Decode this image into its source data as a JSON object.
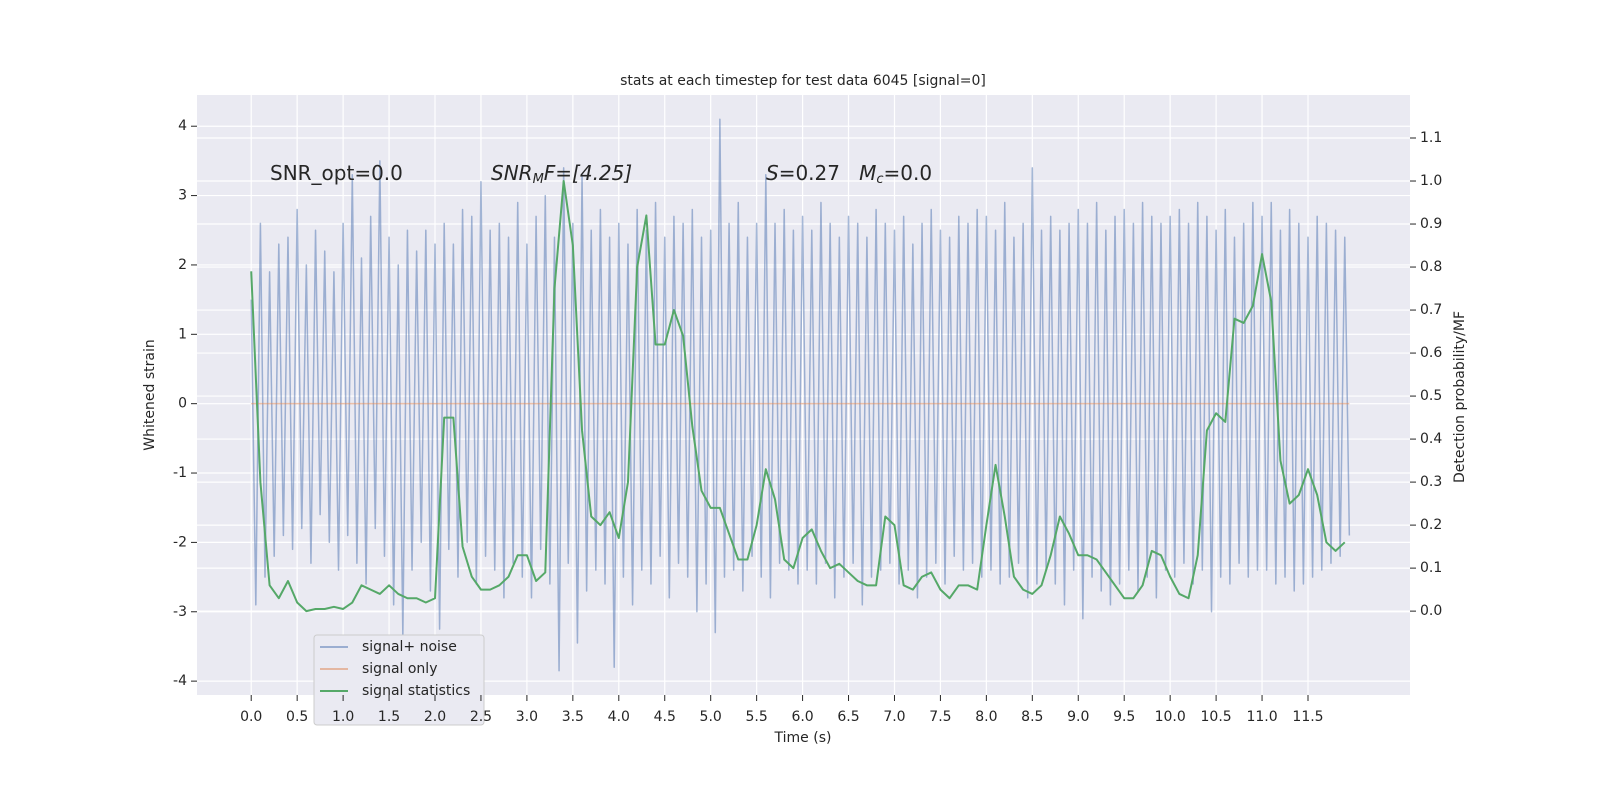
{
  "chart_data": {
    "type": "line",
    "title": "stats at each timestep for test data 6045 [signal=0]",
    "xlabel": "Time (s)",
    "ylabel": "Whitened strain",
    "y2label": "Detection probability/MF",
    "annotations": [
      [
        "SNR_opt=0.0"
      ],
      [
        "SNR",
        "M",
        "F=[4.25]"
      ],
      [
        "S",
        "=0.27   ",
        "M",
        "c",
        "=0.0"
      ]
    ],
    "grid": true,
    "legend": "lower left",
    "xlim": [
      -0.59,
      12.61
    ],
    "ylim": [
      -4.2,
      4.45
    ],
    "y2lim": [
      -0.195,
      1.2
    ],
    "xticks": [
      {
        "value": 0,
        "label": "0.0"
      },
      0.5,
      {
        "value": 1,
        "label": "1.0"
      },
      1.5,
      {
        "value": 2,
        "label": "2.0"
      },
      2.5,
      {
        "value": 3,
        "label": "3.0"
      },
      3.5,
      {
        "value": 4,
        "label": "4.0"
      },
      4.5,
      {
        "value": 5,
        "label": "5.0"
      },
      5.5,
      {
        "value": 6,
        "label": "6.0"
      },
      6.5,
      {
        "value": 7,
        "label": "7.0"
      },
      7.5,
      {
        "value": 8,
        "label": "8.0"
      },
      8.5,
      {
        "value": 9,
        "label": "9.0"
      },
      9.5,
      {
        "value": 10,
        "label": "10.0"
      },
      10.5,
      {
        "value": 11,
        "label": "11.0"
      },
      11.5
    ],
    "yticks": [
      -4,
      -3,
      -2,
      -1,
      0,
      1,
      2,
      3,
      4
    ],
    "y2ticks": [
      {
        "value": 0,
        "label": "0.0"
      },
      0.1,
      0.2,
      0.3,
      0.4,
      0.5,
      0.6,
      0.7,
      0.8,
      0.9,
      {
        "value": 1,
        "label": "1.0"
      },
      1.1
    ],
    "series": [
      {
        "name": "signal+ noise",
        "color": "#4c72b0",
        "opacity": 0.5,
        "x": [
          0,
          0.05,
          0.1,
          0.15,
          0.2,
          0.25,
          0.3,
          0.35,
          0.4,
          0.45,
          0.5,
          0.55,
          0.6,
          0.65,
          0.7,
          0.75,
          0.8,
          0.85,
          0.9,
          0.95,
          1,
          1.05,
          1.1,
          1.15,
          1.2,
          1.25,
          1.3,
          1.35,
          1.4,
          1.45,
          1.5,
          1.55,
          1.6,
          1.65,
          1.7,
          1.75,
          1.8,
          1.85,
          1.9,
          1.95,
          2,
          2.05,
          2.1,
          2.15,
          2.2,
          2.25,
          2.3,
          2.35,
          2.4,
          2.45,
          2.5,
          2.55,
          2.6,
          2.65,
          2.7,
          2.75,
          2.8,
          2.85,
          2.9,
          2.95,
          3,
          3.05,
          3.1,
          3.15,
          3.2,
          3.25,
          3.3,
          3.35,
          3.4,
          3.45,
          3.5,
          3.55,
          3.6,
          3.65,
          3.7,
          3.75,
          3.8,
          3.85,
          3.9,
          3.95,
          4,
          4.05,
          4.1,
          4.15,
          4.2,
          4.25,
          4.3,
          4.35,
          4.4,
          4.45,
          4.5,
          4.55,
          4.6,
          4.65,
          4.7,
          4.75,
          4.8,
          4.85,
          4.9,
          4.95,
          5,
          5.05,
          5.1,
          5.15,
          5.2,
          5.25,
          5.3,
          5.35,
          5.4,
          5.45,
          5.5,
          5.55,
          5.6,
          5.65,
          5.7,
          5.75,
          5.8,
          5.85,
          5.9,
          5.95,
          6,
          6.05,
          6.1,
          6.15,
          6.2,
          6.25,
          6.3,
          6.35,
          6.4,
          6.45,
          6.5,
          6.55,
          6.6,
          6.65,
          6.7,
          6.75,
          6.8,
          6.85,
          6.9,
          6.95,
          7,
          7.05,
          7.1,
          7.15,
          7.2,
          7.25,
          7.3,
          7.35,
          7.4,
          7.45,
          7.5,
          7.55,
          7.6,
          7.65,
          7.7,
          7.75,
          7.8,
          7.85,
          7.9,
          7.95,
          8,
          8.05,
          8.1,
          8.15,
          8.2,
          8.25,
          8.3,
          8.35,
          8.4,
          8.45,
          8.5,
          8.55,
          8.6,
          8.65,
          8.7,
          8.75,
          8.8,
          8.85,
          8.9,
          8.95,
          9,
          9.05,
          9.1,
          9.15,
          9.2,
          9.25,
          9.3,
          9.35,
          9.4,
          9.45,
          9.5,
          9.55,
          9.6,
          9.65,
          9.7,
          9.75,
          9.8,
          9.85,
          9.9,
          9.95,
          10,
          10.05,
          10.1,
          10.15,
          10.2,
          10.25,
          10.3,
          10.35,
          10.4,
          10.45,
          10.5,
          10.55,
          10.6,
          10.65,
          10.7,
          10.75,
          10.8,
          10.85,
          10.9,
          10.95,
          11,
          11.05,
          11.1,
          11.15,
          11.2,
          11.25,
          11.3,
          11.35,
          11.4,
          11.45,
          11.5,
          11.55,
          11.6,
          11.65,
          11.7,
          11.75,
          11.8,
          11.85,
          11.9,
          11.95
        ],
        "values": [
          1.5,
          -2.9,
          2.6,
          -2.5,
          1.9,
          -2.2,
          2.3,
          -1.9,
          2.4,
          -2.1,
          2.8,
          -1.8,
          2.0,
          -2.3,
          2.5,
          -1.6,
          2.2,
          -2.0,
          1.9,
          -2.4,
          2.6,
          -1.9,
          3.3,
          -2.3,
          2.1,
          -2.6,
          2.7,
          -1.8,
          3.5,
          -2.2,
          2.4,
          -2.9,
          2.0,
          -3.35,
          2.5,
          -2.4,
          2.2,
          -2.0,
          2.5,
          -2.7,
          2.3,
          -3.25,
          2.6,
          -2.1,
          2.3,
          -2.5,
          2.8,
          -2.0,
          2.7,
          -2.6,
          3.2,
          -2.2,
          2.5,
          -2.4,
          2.6,
          -2.8,
          2.4,
          -2.3,
          2.9,
          -2.5,
          2.3,
          -2.8,
          2.7,
          -2.1,
          3.0,
          -2.6,
          2.4,
          -3.85,
          3.4,
          -2.3,
          2.6,
          -3.45,
          3.3,
          -2.7,
          2.5,
          -2.4,
          2.8,
          -2.6,
          2.4,
          -3.8,
          2.6,
          -2.5,
          2.3,
          -2.9,
          2.8,
          -2.4,
          2.5,
          -2.6,
          2.9,
          -2.2,
          2.4,
          -2.8,
          2.7,
          -2.3,
          2.6,
          -2.5,
          2.8,
          -3.0,
          2.4,
          -2.6,
          2.5,
          -3.3,
          4.1,
          -2.5,
          2.6,
          -2.4,
          2.9,
          -2.7,
          2.4,
          -2.2,
          2.6,
          -2.5,
          3.3,
          -2.8,
          2.6,
          -2.3,
          2.8,
          -2.4,
          2.5,
          -2.6,
          2.7,
          -2.4,
          2.5,
          -2.6,
          2.9,
          -2.3,
          2.6,
          -2.8,
          2.4,
          -2.5,
          2.7,
          -2.3,
          2.6,
          -2.9,
          2.4,
          -2.5,
          2.8,
          -2.4,
          2.6,
          -2.3,
          2.5,
          -2.6,
          2.7,
          -2.4,
          2.3,
          -2.8,
          2.6,
          -2.5,
          2.8,
          -2.3,
          2.5,
          -2.6,
          2.4,
          -2.2,
          2.7,
          -2.4,
          2.6,
          -2.3,
          2.8,
          -2.5,
          2.7,
          -2.4,
          2.5,
          -2.6,
          2.9,
          -2.5,
          2.4,
          -2.3,
          2.6,
          -2.8,
          3.4,
          -2.6,
          2.5,
          -2.4,
          2.7,
          -2.6,
          2.5,
          -2.9,
          2.6,
          -2.4,
          2.8,
          -3.1,
          2.6,
          -2.5,
          2.9,
          -2.7,
          2.5,
          -2.9,
          2.7,
          -2.6,
          2.8,
          -2.4,
          2.6,
          -2.7,
          2.9,
          -2.5,
          2.7,
          -2.8,
          2.6,
          -2.4,
          2.7,
          -2.5,
          2.8,
          -2.3,
          2.6,
          -2.6,
          2.9,
          -2.4,
          2.7,
          -3.0,
          2.5,
          -2.5,
          2.8,
          -2.6,
          2.4,
          -2.3,
          2.6,
          -2.5,
          2.9,
          -2.4,
          2.7,
          -2.4,
          2.9,
          -2.6,
          2.5,
          -2.5,
          2.8,
          -2.7,
          2.6,
          -2.6,
          2.4,
          -2.5,
          2.7,
          -2.4,
          2.6,
          -2.3,
          2.5,
          -2.2,
          2.4,
          -1.9
        ]
      },
      {
        "name": "signal only",
        "color": "#dd8452",
        "opacity": 0.5,
        "x": [
          0,
          11.95
        ],
        "values": [
          0,
          0
        ]
      },
      {
        "name": "signal statistics",
        "color": "#55a868",
        "opacity": 1,
        "axis": "y2",
        "x": [
          0,
          0.1,
          0.2,
          0.3,
          0.4,
          0.5,
          0.6,
          0.7,
          0.8,
          0.9,
          1,
          1.1,
          1.2,
          1.3,
          1.4,
          1.5,
          1.6,
          1.7,
          1.8,
          1.9,
          2,
          2.1,
          2.2,
          2.3,
          2.4,
          2.5,
          2.6,
          2.7,
          2.8,
          2.9,
          3,
          3.1,
          3.2,
          3.3,
          3.4,
          3.5,
          3.6,
          3.7,
          3.8,
          3.9,
          4,
          4.1,
          4.2,
          4.3,
          4.4,
          4.5,
          4.6,
          4.7,
          4.8,
          4.9,
          5,
          5.1,
          5.2,
          5.3,
          5.4,
          5.5,
          5.6,
          5.7,
          5.8,
          5.9,
          6,
          6.1,
          6.2,
          6.3,
          6.4,
          6.5,
          6.6,
          6.7,
          6.8,
          6.9,
          7,
          7.1,
          7.2,
          7.3,
          7.4,
          7.5,
          7.6,
          7.7,
          7.8,
          7.9,
          8,
          8.1,
          8.2,
          8.3,
          8.4,
          8.5,
          8.6,
          8.7,
          8.8,
          8.9,
          9,
          9.1,
          9.2,
          9.3,
          9.4,
          9.5,
          9.6,
          9.7,
          9.8,
          9.9,
          10,
          10.1,
          10.2,
          10.3,
          10.4,
          10.5,
          10.6,
          10.7,
          10.8,
          10.9,
          11,
          11.1,
          11.2,
          11.3,
          11.4,
          11.5,
          11.6,
          11.7,
          11.8,
          11.9
        ],
        "values": [
          0.79,
          0.3,
          0.06,
          0.03,
          0.07,
          0.02,
          0.0,
          0.005,
          0.005,
          0.01,
          0.005,
          0.02,
          0.06,
          0.05,
          0.04,
          0.06,
          0.04,
          0.03,
          0.03,
          0.02,
          0.03,
          0.45,
          0.45,
          0.15,
          0.08,
          0.05,
          0.05,
          0.06,
          0.08,
          0.13,
          0.13,
          0.07,
          0.09,
          0.75,
          1.0,
          0.85,
          0.42,
          0.22,
          0.2,
          0.23,
          0.17,
          0.3,
          0.8,
          0.92,
          0.62,
          0.62,
          0.7,
          0.64,
          0.43,
          0.28,
          0.24,
          0.24,
          0.18,
          0.12,
          0.12,
          0.2,
          0.33,
          0.26,
          0.12,
          0.1,
          0.17,
          0.19,
          0.14,
          0.1,
          0.11,
          0.09,
          0.07,
          0.06,
          0.06,
          0.22,
          0.2,
          0.06,
          0.05,
          0.08,
          0.09,
          0.05,
          0.03,
          0.06,
          0.06,
          0.05,
          0.2,
          0.34,
          0.22,
          0.08,
          0.05,
          0.04,
          0.06,
          0.13,
          0.22,
          0.18,
          0.13,
          0.13,
          0.12,
          0.09,
          0.06,
          0.03,
          0.03,
          0.06,
          0.14,
          0.13,
          0.08,
          0.04,
          0.03,
          0.13,
          0.42,
          0.46,
          0.44,
          0.68,
          0.67,
          0.71,
          0.83,
          0.72,
          0.35,
          0.25,
          0.27,
          0.33,
          0.27,
          0.16,
          0.14,
          0.16
        ]
      }
    ]
  }
}
